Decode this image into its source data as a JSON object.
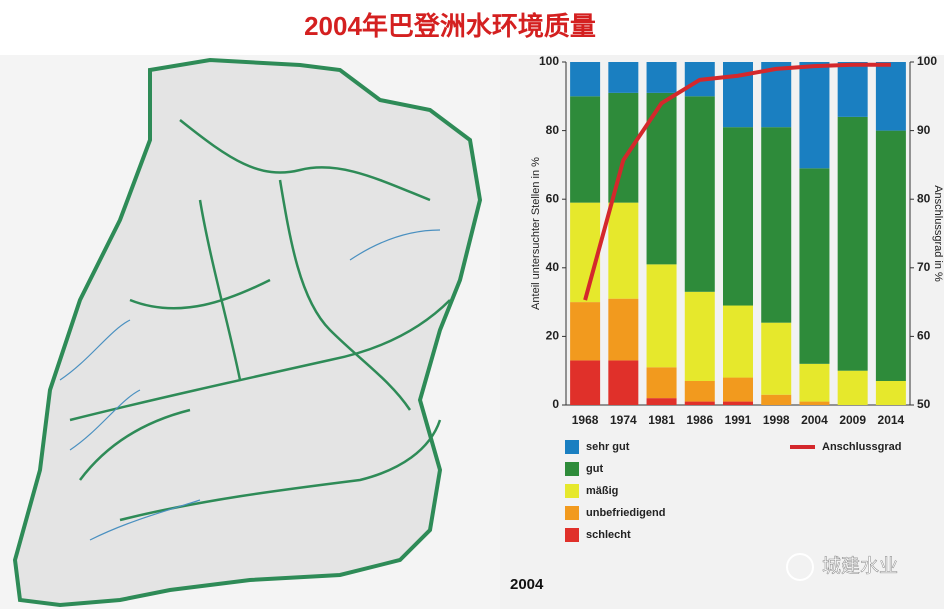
{
  "slide_title": "2004年巴登洲水环境质量",
  "caption": "2004",
  "watermark": "城建水业",
  "chart_data": {
    "type": "bar",
    "stacked": true,
    "categories": [
      "1968",
      "1974",
      "1981",
      "1986",
      "1991",
      "1998",
      "2004",
      "2009",
      "2014"
    ],
    "y_label": "Anteil untersuchter Stellen in %",
    "y2_label": "Anschlussgrad in %",
    "ylim": [
      0,
      100
    ],
    "yticks": [
      0,
      20,
      40,
      60,
      80,
      100
    ],
    "y2lim": [
      50,
      100
    ],
    "y2ticks": [
      50,
      60,
      70,
      80,
      90,
      100
    ],
    "series": [
      {
        "name": "sehr gut",
        "color": "#1a7fc1",
        "values": [
          10,
          9,
          9,
          10,
          19,
          19,
          31,
          16,
          20
        ]
      },
      {
        "name": "gut",
        "color": "#2e8b3a",
        "values": [
          31,
          32,
          50,
          57,
          52,
          57,
          57,
          74,
          73
        ]
      },
      {
        "name": "mäßig",
        "color": "#e6e82c",
        "values": [
          29,
          28,
          30,
          26,
          21,
          21,
          11,
          10,
          7
        ]
      },
      {
        "name": "unbefriedigend",
        "color": "#f29a1e",
        "values": [
          17,
          18,
          9,
          6,
          7,
          3,
          1,
          0,
          0
        ]
      },
      {
        "name": "schlecht",
        "color": "#e0302a",
        "values": [
          13,
          13,
          2,
          1,
          1,
          0,
          0,
          0,
          0
        ]
      },
      {
        "name": "Anschlussgrad",
        "type": "line",
        "axis": "y2",
        "color": "#d4282c",
        "values": [
          65.3,
          85.7,
          94,
          97.4,
          98,
          99,
          99.4,
          99.6,
          99.6
        ]
      }
    ]
  }
}
